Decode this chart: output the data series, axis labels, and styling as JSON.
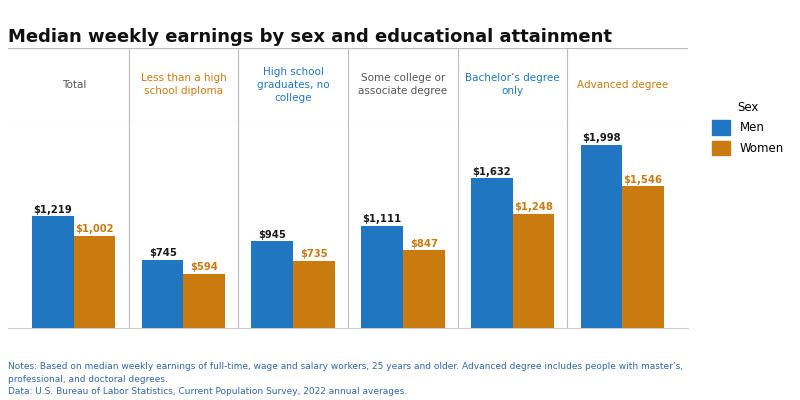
{
  "title": "Median weekly earnings by sex and educational attainment",
  "categories": [
    "Total",
    "Less than a high\nschool diploma",
    "High school\ngraduates, no\ncollege",
    "Some college or\nassociate degree",
    "Bachelor’s degree\nonly",
    "Advanced degree"
  ],
  "men_values": [
    1219,
    745,
    945,
    1111,
    1632,
    1998
  ],
  "women_values": [
    1002,
    594,
    735,
    847,
    1248,
    1546
  ],
  "men_labels": [
    "$1,219",
    "$745",
    "$945",
    "$1,111",
    "$1,632",
    "$1,998"
  ],
  "women_labels": [
    "$1,002",
    "$594",
    "$735",
    "$847",
    "$1,248",
    "$1,546"
  ],
  "men_color": "#2176C2",
  "women_color": "#C97B10",
  "label_men_color": "#1a1a1a",
  "label_women_color": "#C97B10",
  "background_color": "#ffffff",
  "title_fontsize": 13,
  "cat_label_color_total": "#555555",
  "cat_label_color_orange": "#C97B10",
  "cat_label_color_blue": "#2176C2",
  "legend_title": "Sex",
  "legend_men": "Men",
  "legend_women": "Women",
  "notes": "Notes: Based on median weekly earnings of full-time, wage and salary workers, 25 years and older. Advanced degree includes people with master’s,\nprofessional, and doctoral degrees.\nData: U.S. Bureau of Labor Statistics, Current Population Survey, 2022 annual averages.",
  "ylim": [
    0,
    2250
  ],
  "bar_width": 0.38,
  "grid_color": "#cccccc",
  "divider_color": "#bbbbbb"
}
